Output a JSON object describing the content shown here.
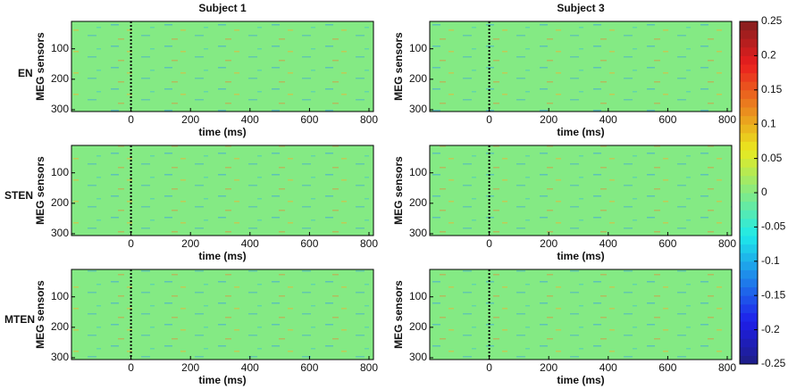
{
  "columns": [
    "Subject 1",
    "Subject 3"
  ],
  "rows": [
    "EN",
    "STEN",
    "MTEN"
  ],
  "colorbar": {
    "colormap": "jet",
    "clim": [
      -0.25,
      0.25
    ],
    "ticks": [
      0.25,
      0.2,
      0.15,
      0.1,
      0.05,
      0,
      -0.05,
      -0.1,
      -0.15,
      -0.2,
      -0.25
    ]
  },
  "chart_data": [
    {
      "type": "heatmap",
      "xlabel": "time (ms)",
      "ylabel": "MEG sensors",
      "xlim": [
        -200,
        815
      ],
      "ylim": [
        10,
        306
      ],
      "xticks": [
        0,
        200,
        400,
        600,
        800
      ],
      "yticks": [
        100,
        200,
        300
      ],
      "onset": 0
    },
    {
      "type": "heatmap",
      "xlabel": "time (ms)",
      "ylabel": "MEG sensors",
      "xlim": [
        -200,
        815
      ],
      "ylim": [
        10,
        306
      ],
      "xticks": [
        0,
        200,
        400,
        600,
        800
      ],
      "yticks": [
        100,
        200,
        300
      ],
      "onset": 0
    },
    {
      "type": "heatmap",
      "xlabel": "time (ms)",
      "ylabel": "MEG sensors",
      "xlim": [
        -200,
        815
      ],
      "ylim": [
        10,
        306
      ],
      "xticks": [
        0,
        200,
        400,
        600,
        800
      ],
      "yticks": [
        100,
        200,
        300
      ],
      "onset": 0
    },
    {
      "type": "heatmap",
      "xlabel": "time (ms)",
      "ylabel": "MEG sensors",
      "xlim": [
        -200,
        815
      ],
      "ylim": [
        10,
        306
      ],
      "xticks": [
        0,
        200,
        400,
        600,
        800
      ],
      "yticks": [
        100,
        200,
        300
      ],
      "onset": 0
    },
    {
      "type": "heatmap",
      "xlabel": "time (ms)",
      "ylabel": "MEG sensors",
      "xlim": [
        -200,
        815
      ],
      "ylim": [
        10,
        306
      ],
      "xticks": [
        0,
        200,
        400,
        600,
        800
      ],
      "yticks": [
        100,
        200,
        300
      ],
      "onset": 0
    },
    {
      "type": "heatmap",
      "xlabel": "time (ms)",
      "ylabel": "MEG sensors",
      "xlim": [
        -200,
        815
      ],
      "ylim": [
        10,
        306
      ],
      "xticks": [
        0,
        200,
        400,
        600,
        800
      ],
      "yticks": [
        100,
        200,
        300
      ],
      "onset": 0
    }
  ]
}
